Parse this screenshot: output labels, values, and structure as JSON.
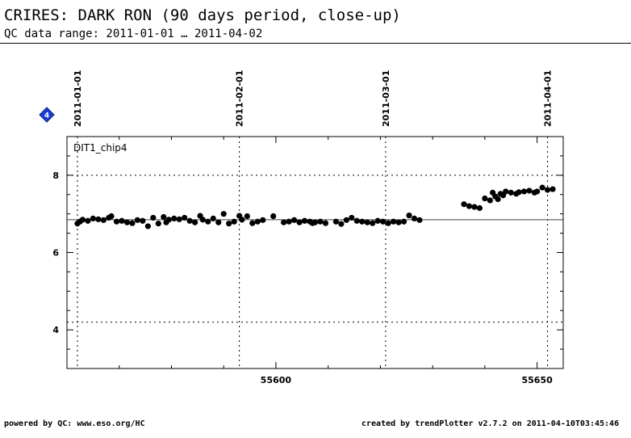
{
  "header": {
    "title": "CRIRES: DARK RON (90 days period, close-up)",
    "subtitle": "QC data range: 2011-01-01 … 2011-04-02"
  },
  "footer": {
    "left": "powered by QC: www.eso.org/HC",
    "right": "created by trendPlotter v2.7.2 on 2011-04-10T03:45:46"
  },
  "marker": {
    "label": "4",
    "color": "#1a3fd6"
  },
  "chart_data": {
    "type": "scatter",
    "panel_label": "DIT1_chip4",
    "xlim": [
      55560,
      55655
    ],
    "ylim": [
      3,
      9
    ],
    "x_ticks_bottom": [
      55600,
      55650
    ],
    "y_ticks": [
      4,
      6,
      8
    ],
    "date_markers": [
      {
        "x": 55562,
        "label": "2011-01-01"
      },
      {
        "x": 55593,
        "label": "2011-02-01"
      },
      {
        "x": 55621,
        "label": "2011-03-01"
      },
      {
        "x": 55652,
        "label": "2011-04-01"
      }
    ],
    "reference_line": 6.85,
    "dotted_hlines": [
      8.0,
      4.2
    ],
    "series": [
      {
        "values": [
          [
            55562.0,
            6.75
          ],
          [
            55562.5,
            6.8
          ],
          [
            55563.0,
            6.85
          ],
          [
            55564.0,
            6.82
          ],
          [
            55565.0,
            6.88
          ],
          [
            55566.0,
            6.86
          ],
          [
            55567.0,
            6.84
          ],
          [
            55568.0,
            6.9
          ],
          [
            55568.5,
            6.94
          ],
          [
            55569.5,
            6.8
          ],
          [
            55570.5,
            6.82
          ],
          [
            55571.5,
            6.78
          ],
          [
            55572.5,
            6.76
          ],
          [
            55573.5,
            6.84
          ],
          [
            55574.5,
            6.82
          ],
          [
            55575.5,
            6.68
          ],
          [
            55576.5,
            6.9
          ],
          [
            55577.5,
            6.75
          ],
          [
            55578.5,
            6.92
          ],
          [
            55579.0,
            6.78
          ],
          [
            55579.5,
            6.85
          ],
          [
            55580.5,
            6.88
          ],
          [
            55581.5,
            6.86
          ],
          [
            55582.5,
            6.9
          ],
          [
            55583.5,
            6.82
          ],
          [
            55584.5,
            6.78
          ],
          [
            55585.5,
            6.95
          ],
          [
            55586.0,
            6.85
          ],
          [
            55587.0,
            6.8
          ],
          [
            55588.0,
            6.88
          ],
          [
            55589.0,
            6.78
          ],
          [
            55590.0,
            7.0
          ],
          [
            55591.0,
            6.75
          ],
          [
            55592.0,
            6.8
          ],
          [
            55593.0,
            6.95
          ],
          [
            55593.5,
            6.85
          ],
          [
            55594.5,
            6.94
          ],
          [
            55595.5,
            6.76
          ],
          [
            55596.5,
            6.8
          ],
          [
            55597.5,
            6.84
          ],
          [
            55599.5,
            6.94
          ],
          [
            55601.5,
            6.78
          ],
          [
            55602.5,
            6.8
          ],
          [
            55603.5,
            6.84
          ],
          [
            55604.5,
            6.78
          ],
          [
            55605.5,
            6.82
          ],
          [
            55606.5,
            6.8
          ],
          [
            55607.0,
            6.76
          ],
          [
            55607.5,
            6.78
          ],
          [
            55608.5,
            6.8
          ],
          [
            55609.5,
            6.76
          ],
          [
            55611.5,
            6.8
          ],
          [
            55612.5,
            6.74
          ],
          [
            55613.5,
            6.84
          ],
          [
            55614.5,
            6.9
          ],
          [
            55615.5,
            6.82
          ],
          [
            55616.5,
            6.8
          ],
          [
            55617.5,
            6.78
          ],
          [
            55618.5,
            6.76
          ],
          [
            55619.5,
            6.82
          ],
          [
            55620.5,
            6.8
          ],
          [
            55621.5,
            6.76
          ],
          [
            55622.5,
            6.8
          ],
          [
            55623.5,
            6.78
          ],
          [
            55624.5,
            6.8
          ],
          [
            55625.5,
            6.96
          ],
          [
            55626.5,
            6.88
          ],
          [
            55627.5,
            6.84
          ],
          [
            55636.0,
            7.25
          ],
          [
            55637.0,
            7.2
          ],
          [
            55638.0,
            7.18
          ],
          [
            55639.0,
            7.15
          ],
          [
            55640.0,
            7.4
          ],
          [
            55641.0,
            7.35
          ],
          [
            55641.5,
            7.55
          ],
          [
            55642.0,
            7.45
          ],
          [
            55642.5,
            7.38
          ],
          [
            55643.0,
            7.52
          ],
          [
            55643.5,
            7.48
          ],
          [
            55644.0,
            7.58
          ],
          [
            55645.0,
            7.55
          ],
          [
            55646.0,
            7.52
          ],
          [
            55646.5,
            7.56
          ],
          [
            55647.5,
            7.58
          ],
          [
            55648.5,
            7.6
          ],
          [
            55649.5,
            7.55
          ],
          [
            55650.0,
            7.58
          ],
          [
            55651.0,
            7.68
          ],
          [
            55652.0,
            7.62
          ],
          [
            55653.0,
            7.64
          ]
        ]
      }
    ]
  }
}
